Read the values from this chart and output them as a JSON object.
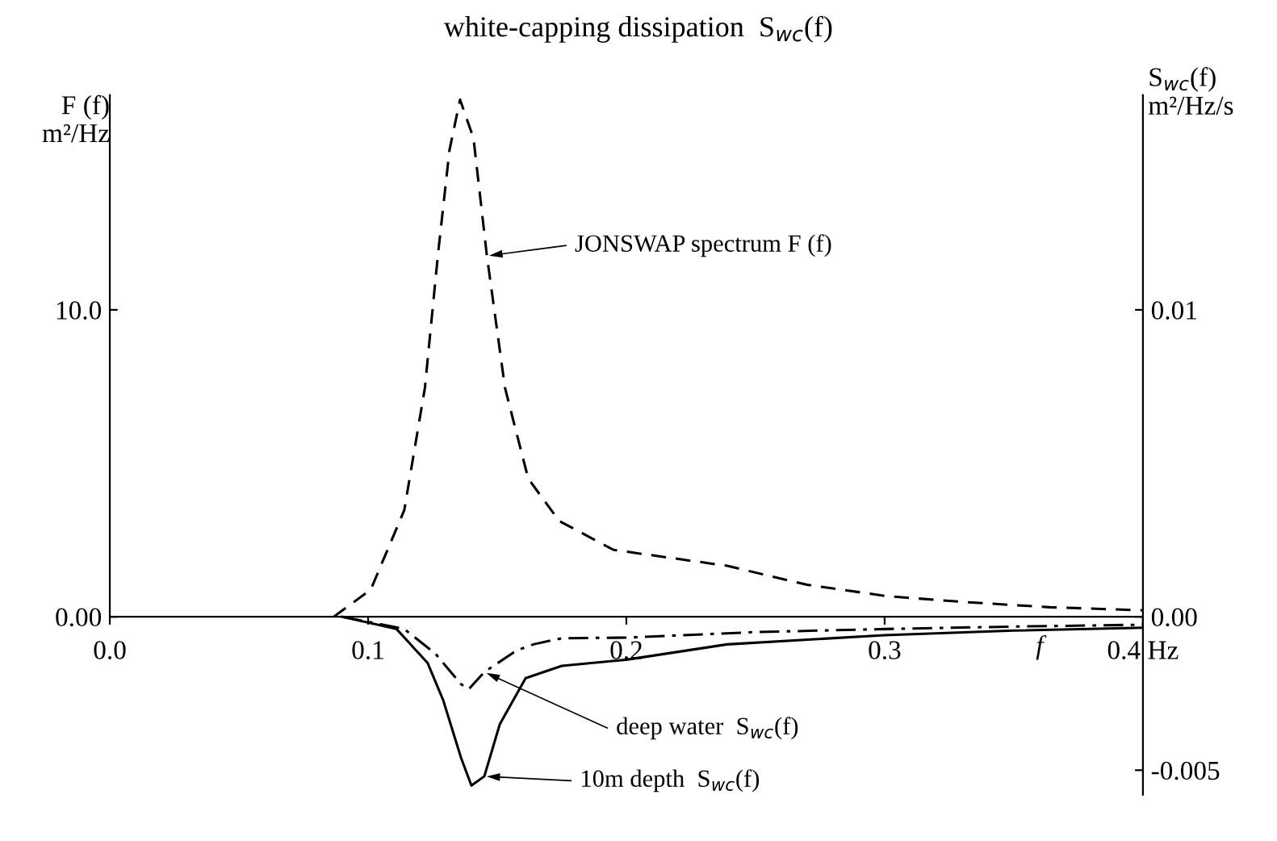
{
  "chart_data": {
    "type": "line",
    "title": "white-capping dissipation  S$_{wc}$(f)",
    "xlabel": "f",
    "ylabel": "F (f)\nm²/Hz",
    "y2label": "S$_{wc}$(f)\nm²/Hz/s",
    "xlim": [
      0,
      0.4
    ],
    "xticks": [
      {
        "value": 0,
        "label": "0.0"
      },
      0.1,
      0.2,
      0.3,
      {
        "value": 0.4,
        "label": "0.4 Hz"
      }
    ],
    "ylim": [
      -5.8,
      17.0
    ],
    "yticks": [
      {
        "value": 0,
        "label": "0.00"
      },
      {
        "value": 10,
        "label": "10.0"
      }
    ],
    "y2lim": [
      -0.0058,
      0.017
    ],
    "y2ticks": [
      {
        "value": -0.005,
        "label": "-0.005"
      },
      {
        "value": 0,
        "label": "0.00"
      },
      0.01
    ],
    "annotations": [
      "JONSWAP spectrum F (f)",
      "deep water  S$_{wc}$(f)",
      "10m depth  S$_{wc}$(f)"
    ],
    "grid": false,
    "legend": false,
    "marker": "none",
    "series": [
      {
        "color": "#000000",
        "line_style": "dashed",
        "x": [
          0.0867,
          0.101,
          0.114,
          0.122,
          0.127,
          0.1315,
          0.1356,
          0.1408,
          0.146,
          0.153,
          0.162,
          0.174,
          0.195,
          0.239,
          0.27,
          0.301,
          0.3325,
          0.364,
          0.4
        ],
        "values": [
          0,
          0.88,
          3.47,
          7.46,
          11.76,
          15.2,
          16.85,
          15.6,
          11.76,
          7.46,
          4.5,
          3.12,
          2.18,
          1.66,
          1.04,
          0.67,
          0.47,
          0.31,
          0.21
        ]
      },
      {
        "color": "#000000",
        "line_style": "dashdot",
        "axis": "y2",
        "x": [
          0.09,
          0.114,
          0.126,
          0.136,
          0.139,
          0.145,
          0.1575,
          0.164,
          0.175,
          0.2,
          0.25,
          0.3,
          0.35,
          0.4
        ],
        "values": [
          0,
          -0.0004,
          -0.0012,
          -0.0022,
          -0.00236,
          -0.0018,
          -0.0011,
          -0.0009,
          -0.0007,
          -0.00068,
          -0.0005,
          -0.0004,
          -0.00032,
          -0.00026
        ]
      },
      {
        "color": "#000000",
        "line_style": "solid",
        "axis": "y2",
        "x": [
          0.09,
          0.111,
          0.123,
          0.129,
          0.136,
          0.14,
          0.145,
          0.151,
          0.161,
          0.175,
          0.2,
          0.239,
          0.3,
          0.35,
          0.4
        ],
        "values": [
          0,
          -0.0004,
          -0.0015,
          -0.0027,
          -0.0046,
          -0.0055,
          -0.0052,
          -0.0035,
          -0.002,
          -0.0016,
          -0.0014,
          -0.0009,
          -0.0006,
          -0.00045,
          -0.00036
        ]
      }
    ]
  }
}
